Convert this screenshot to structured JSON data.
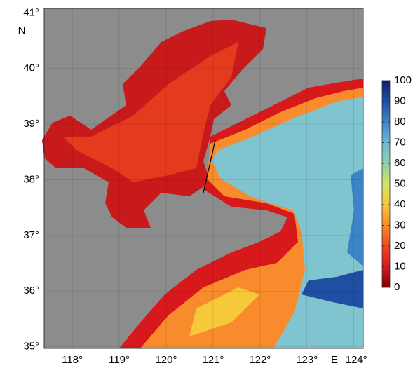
{
  "map": {
    "xlim": [
      117.4,
      124.2
    ],
    "ylim": [
      34.97,
      41.08
    ],
    "xticks": [
      {
        "value": 118,
        "label": "118°"
      },
      {
        "value": 119,
        "label": "119°"
      },
      {
        "value": 120,
        "label": "120°"
      },
      {
        "value": 121,
        "label": "121°"
      },
      {
        "value": 122,
        "label": "122°"
      },
      {
        "value": 123,
        "label": "123°"
      },
      {
        "value": 124,
        "label": "124°"
      }
    ],
    "yticks": [
      {
        "value": 35,
        "label": "35°"
      },
      {
        "value": 36,
        "label": "36°"
      },
      {
        "value": 37,
        "label": "37°"
      },
      {
        "value": 38,
        "label": "38°"
      },
      {
        "value": 39,
        "label": "39°"
      },
      {
        "value": 40,
        "label": "40°"
      },
      {
        "value": 41,
        "label": "41°"
      }
    ],
    "x_label": "E",
    "y_label": "N",
    "grid": true,
    "land_color": "#8c8c8c"
  },
  "colorbar": {
    "lim": [
      0,
      100
    ],
    "ticks": [
      0,
      10,
      20,
      30,
      40,
      50,
      60,
      70,
      80,
      90,
      100
    ],
    "colors": [
      "#7f0000",
      "#d7191c",
      "#f0461e",
      "#f88b2b",
      "#f5c93a",
      "#d7e36a",
      "#8fd0a8",
      "#6cb8dd",
      "#3d84c6",
      "#1f4fa3",
      "#0b1f6b"
    ]
  }
}
